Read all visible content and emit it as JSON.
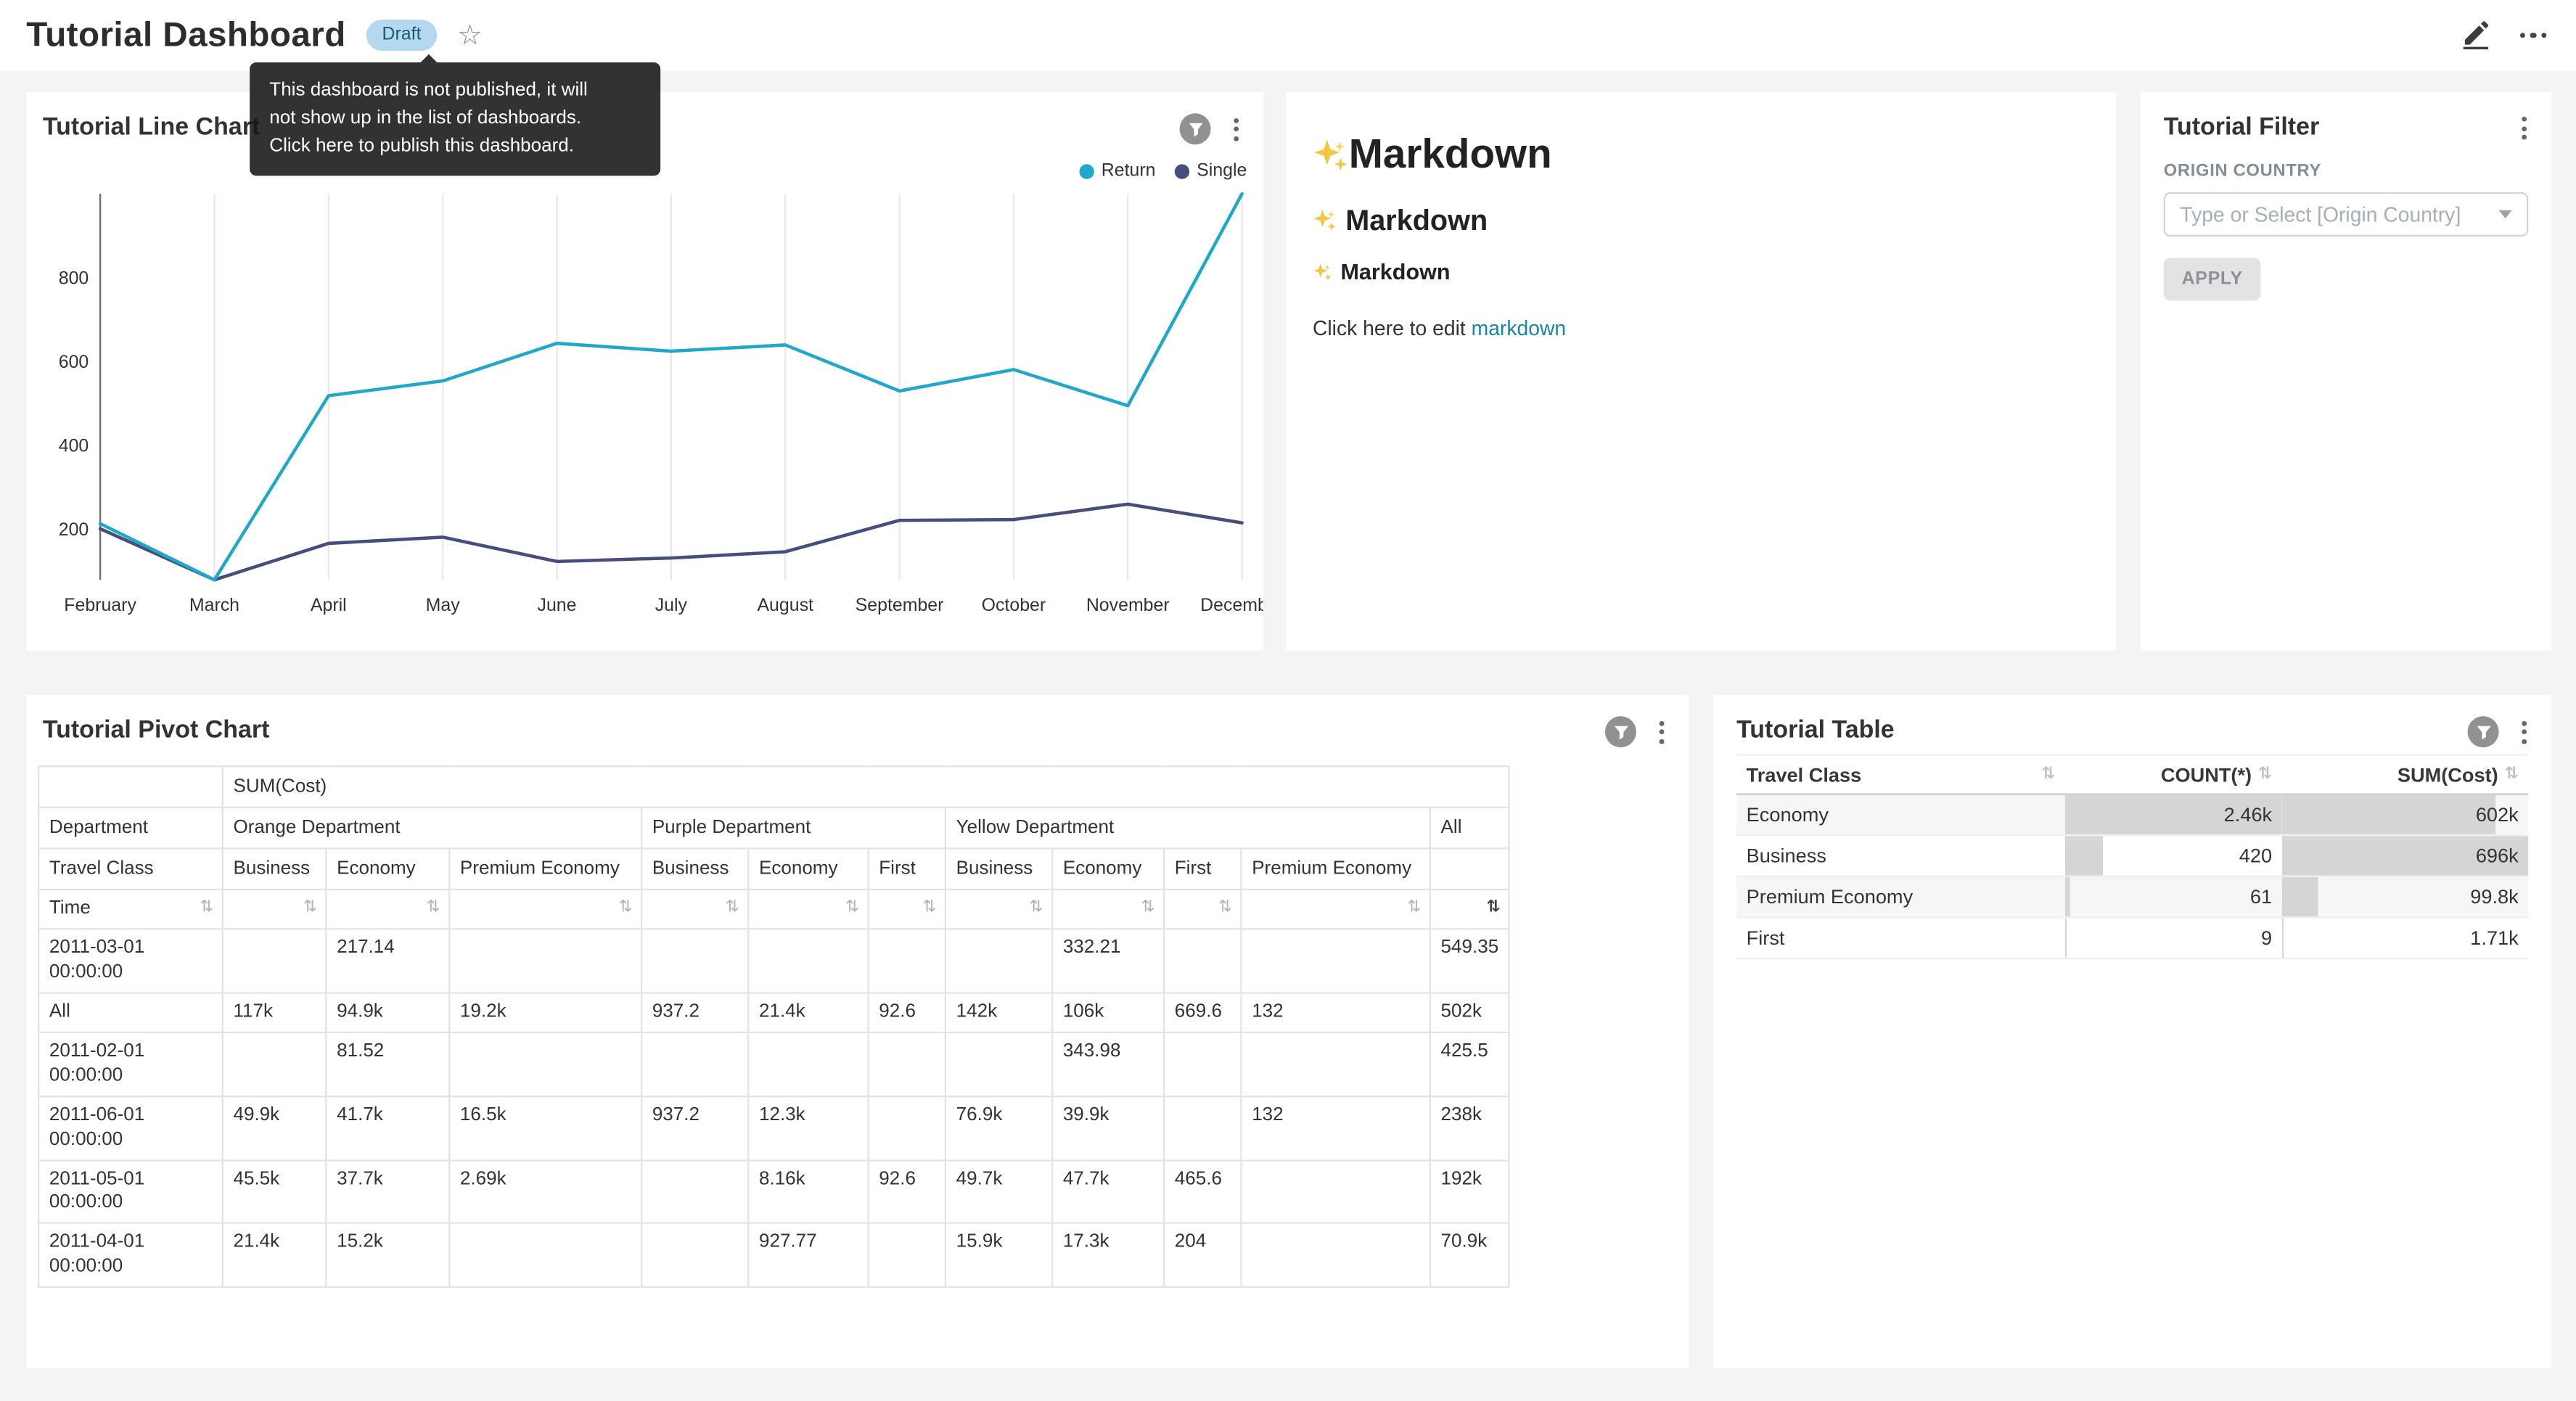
{
  "header": {
    "title": "Tutorial Dashboard",
    "badge": "Draft"
  },
  "tooltip": {
    "line1": "This dashboard is not published, it will",
    "line2": "not show up in the list of dashboards.",
    "line3": "Click here to publish this dashboard."
  },
  "icons": {
    "favorite": "star-outline",
    "edit": "pencil",
    "more": "horizontal-ellipsis",
    "card_menu": "vertical-ellipsis-kebab",
    "filter_indicator": "funnel-in-gray-circle",
    "sort": "sort-up-down-arrows",
    "select_caret": "chevron-down",
    "markdown_sparkles": "sparkles"
  },
  "colors": {
    "series_return": "#1FA8C9",
    "series_single": "#454E7C",
    "link": "#1985A0",
    "draft_badge_bg": "#B4D9EE",
    "table_bar": "#D5D5D5"
  },
  "cards": {
    "markdown": {
      "h1": "Markdown",
      "h2": "Markdown",
      "h3": "Markdown",
      "body_text": "Click here to edit ",
      "link_text": "markdown"
    },
    "filter": {
      "title": "Tutorial Filter",
      "field_label": "ORIGIN COUNTRY",
      "placeholder": "Type or Select [Origin Country]",
      "apply_label": "APPLY"
    }
  },
  "chart_data": [
    {
      "id": "tutorial-line-chart",
      "type": "line",
      "title": "Tutorial Line Chart",
      "x": [
        "February",
        "March",
        "April",
        "May",
        "June",
        "July",
        "August",
        "September",
        "October",
        "November",
        "December"
      ],
      "series": [
        {
          "name": "Return",
          "color": "#1FA8C9",
          "values": [
            212,
            78,
            518,
            553,
            643,
            624,
            639,
            529,
            580,
            494,
            1000
          ]
        },
        {
          "name": "Single",
          "color": "#454E7C",
          "values": [
            200,
            78,
            165,
            180,
            122,
            130,
            145,
            220,
            222,
            259,
            214
          ]
        }
      ],
      "yticks": [
        200,
        400,
        600,
        800
      ],
      "ylim": [
        78,
        1000
      ],
      "grid": "vertical-only",
      "legend_position": "top-right"
    },
    {
      "id": "tutorial-pivot-chart",
      "type": "table",
      "title": "Tutorial Pivot Chart",
      "metric": "SUM(Cost)",
      "column_dimension": "Department",
      "column_dimension2": "Travel Class",
      "row_dimension": "Time",
      "column_groups": [
        {
          "label": "Orange Department",
          "cols": [
            "Business",
            "Economy",
            "Premium Economy"
          ]
        },
        {
          "label": "Purple Department",
          "cols": [
            "Business",
            "Economy",
            "First"
          ]
        },
        {
          "label": "Yellow Department",
          "cols": [
            "Business",
            "Economy",
            "First",
            "Premium Economy"
          ]
        },
        {
          "label": "All",
          "cols": [
            ""
          ]
        }
      ],
      "rows": [
        {
          "label": "2011-03-01 00:00:00",
          "values": [
            "",
            "217.14",
            "",
            "",
            "",
            "",
            "",
            "332.21",
            "",
            "",
            "549.35"
          ]
        },
        {
          "label": "All",
          "values": [
            "117k",
            "94.9k",
            "19.2k",
            "937.2",
            "21.4k",
            "92.6",
            "142k",
            "106k",
            "669.6",
            "132",
            "502k"
          ]
        },
        {
          "label": "2011-02-01 00:00:00",
          "values": [
            "",
            "81.52",
            "",
            "",
            "",
            "",
            "",
            "343.98",
            "",
            "",
            "425.5"
          ]
        },
        {
          "label": "2011-06-01 00:00:00",
          "values": [
            "49.9k",
            "41.7k",
            "16.5k",
            "937.2",
            "12.3k",
            "",
            "76.9k",
            "39.9k",
            "",
            "132",
            "238k"
          ]
        },
        {
          "label": "2011-05-01 00:00:00",
          "values": [
            "45.5k",
            "37.7k",
            "2.69k",
            "",
            "8.16k",
            "92.6",
            "49.7k",
            "47.7k",
            "465.6",
            "",
            "192k"
          ]
        },
        {
          "label": "2011-04-01 00:00:00",
          "values": [
            "21.4k",
            "15.2k",
            "",
            "",
            "927.77",
            "",
            "15.9k",
            "17.3k",
            "204",
            "",
            "70.9k"
          ]
        }
      ],
      "sorted_column": "All",
      "sort_direction": "desc"
    },
    {
      "id": "tutorial-table",
      "type": "table",
      "title": "Tutorial Table",
      "columns": [
        {
          "label": "Travel Class",
          "align": "left"
        },
        {
          "label": "COUNT(*)",
          "align": "right"
        },
        {
          "label": "SUM(Cost)",
          "align": "right"
        }
      ],
      "rows": [
        {
          "name": "Economy",
          "count": "2.46k",
          "count_num": 2460,
          "sum": "602k",
          "sum_num": 602000
        },
        {
          "name": "Business",
          "count": "420",
          "count_num": 420,
          "sum": "696k",
          "sum_num": 696000
        },
        {
          "name": "Premium Economy",
          "count": "61",
          "count_num": 61,
          "sum": "99.8k",
          "sum_num": 99800
        },
        {
          "name": "First",
          "count": "9",
          "count_num": 9,
          "sum": "1.71k",
          "sum_num": 1710
        }
      ]
    }
  ]
}
